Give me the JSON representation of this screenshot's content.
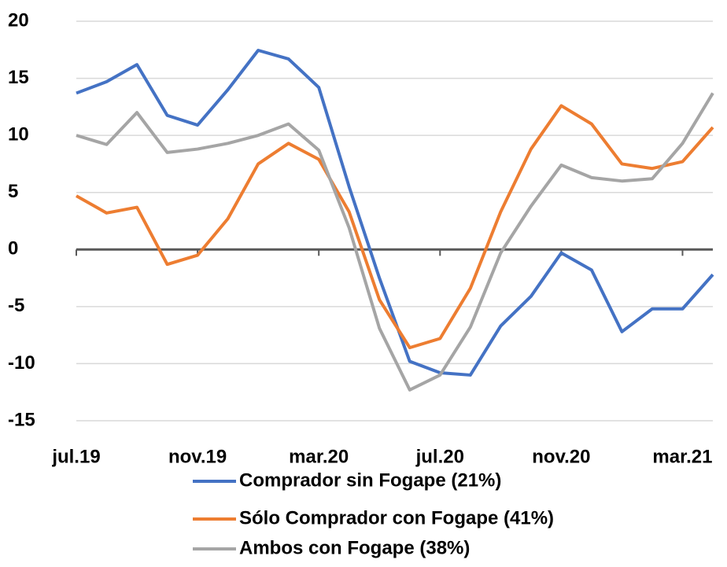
{
  "chart_data": {
    "type": "line",
    "categories": [
      "jul.19",
      null,
      null,
      null,
      "nov.19",
      null,
      null,
      null,
      "mar.20",
      null,
      null,
      null,
      "jul.20",
      null,
      null,
      null,
      "nov.20",
      null,
      null,
      null,
      "mar.21",
      null
    ],
    "series": [
      {
        "name": "Comprador sin Fogape (21%)",
        "color": "#4472c4",
        "values": [
          13.7,
          14.7,
          16.2,
          11.75,
          10.9,
          14,
          17.45,
          16.7,
          14.2,
          5.5,
          -2.5,
          -9.8,
          -10.8,
          -11,
          -6.7,
          -4.1,
          -0.3,
          -1.8,
          -7.2,
          -5.2,
          -5.2,
          -2.2
        ]
      },
      {
        "name": "Sólo Comprador con Fogape (41%)",
        "color": "#ed7d31",
        "values": [
          4.7,
          3.2,
          3.7,
          -1.3,
          -0.5,
          2.7,
          7.5,
          9.3,
          7.9,
          3.3,
          -4.4,
          -8.6,
          -7.8,
          -3.4,
          3.3,
          8.8,
          12.6,
          11,
          7.5,
          7.1,
          7.7,
          10.7
        ]
      },
      {
        "name": "Ambos con Fogape (38%)",
        "color": "#a5a5a5",
        "values": [
          10,
          9.2,
          12,
          8.5,
          8.8,
          9.3,
          10,
          11,
          8.7,
          1.9,
          -6.9,
          -12.3,
          -11,
          -6.8,
          -0.3,
          3.8,
          7.4,
          6.3,
          6,
          6.2,
          9.3,
          13.7
        ]
      }
    ],
    "ylim": [
      -15,
      20
    ],
    "yticks": [
      -15,
      -10,
      -5,
      0,
      5,
      10,
      15,
      20
    ],
    "grid": true
  }
}
